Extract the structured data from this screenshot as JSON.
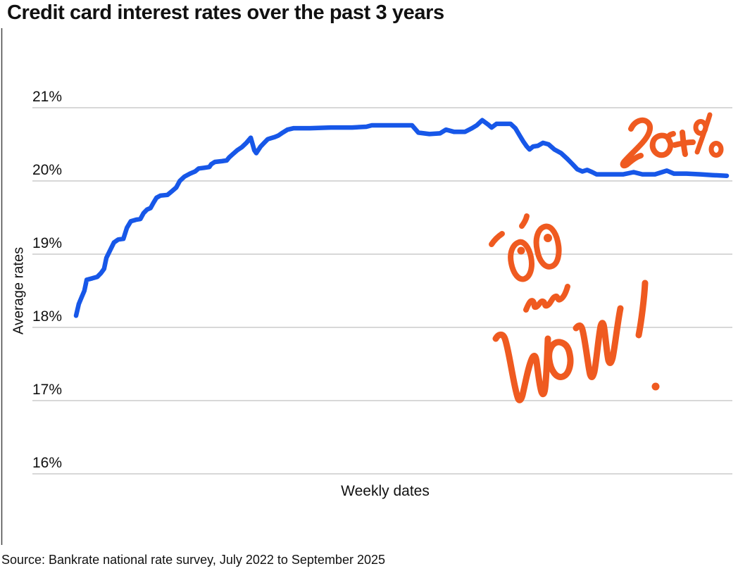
{
  "title": "Credit card interest rates over the past 3 years",
  "source": "Source: Bankrate national rate survey, July 2022 to September 2025",
  "y_axis": {
    "label": "Average rates",
    "ticks": [
      {
        "label": "21%",
        "value": 21
      },
      {
        "label": "20%",
        "value": 20
      },
      {
        "label": "19%",
        "value": 19
      },
      {
        "label": "18%",
        "value": 18
      },
      {
        "label": "17%",
        "value": 17
      },
      {
        "label": "16%",
        "value": 16
      }
    ]
  },
  "x_axis": {
    "label": "Weekly dates"
  },
  "annotations": {
    "rate_note": "20+%",
    "exclamation": "WOW!",
    "face": "surprised-face-doodle"
  },
  "colors": {
    "line": "#1757e8",
    "annotation": "#ef5a20",
    "gridline": "#d8d8d8",
    "axis": "#444444",
    "text": "#111111"
  },
  "chart_data": {
    "type": "line",
    "title": "Credit card interest rates over the past 3 years",
    "xlabel": "Weekly dates",
    "ylabel": "Average rates",
    "x_unit": "weeks since July 2022 (through September 2025)",
    "x_range": [
      0,
      165
    ],
    "ylim": [
      15.5,
      21.5
    ],
    "y_ticks": [
      16,
      17,
      18,
      19,
      20,
      21
    ],
    "grid": "horizontal",
    "legend": "none",
    "series": [
      {
        "name": "Average credit card interest rate (%)",
        "points": [
          [
            0,
            18.16
          ],
          [
            0.7,
            18.32
          ],
          [
            1.4,
            18.41
          ],
          [
            2.1,
            18.5
          ],
          [
            2.7,
            18.65
          ],
          [
            4.1,
            18.67
          ],
          [
            5.4,
            18.69
          ],
          [
            6.3,
            18.74
          ],
          [
            7.1,
            18.8
          ],
          [
            7.7,
            18.95
          ],
          [
            8.6,
            19.05
          ],
          [
            9.6,
            19.16
          ],
          [
            10.7,
            19.2
          ],
          [
            12,
            19.21
          ],
          [
            12.9,
            19.36
          ],
          [
            13.9,
            19.45
          ],
          [
            15.2,
            19.47
          ],
          [
            16.3,
            19.48
          ],
          [
            17.1,
            19.56
          ],
          [
            18,
            19.61
          ],
          [
            18.9,
            19.63
          ],
          [
            19.6,
            19.7
          ],
          [
            20.4,
            19.77
          ],
          [
            21.4,
            19.8
          ],
          [
            23.2,
            19.81
          ],
          [
            24.3,
            19.86
          ],
          [
            25.4,
            19.91
          ],
          [
            26.3,
            20.0
          ],
          [
            27.5,
            20.06
          ],
          [
            28.9,
            20.1
          ],
          [
            30.2,
            20.13
          ],
          [
            31.1,
            20.17
          ],
          [
            32.5,
            20.18
          ],
          [
            33.8,
            20.19
          ],
          [
            34.3,
            20.23
          ],
          [
            35.2,
            20.26
          ],
          [
            37,
            20.27
          ],
          [
            38.2,
            20.28
          ],
          [
            38.8,
            20.32
          ],
          [
            39.6,
            20.36
          ],
          [
            40.9,
            20.42
          ],
          [
            42,
            20.46
          ],
          [
            43.2,
            20.52
          ],
          [
            44.3,
            20.59
          ],
          [
            45.2,
            20.42
          ],
          [
            45.7,
            20.38
          ],
          [
            46.8,
            20.47
          ],
          [
            47.7,
            20.52
          ],
          [
            48.6,
            20.57
          ],
          [
            50.4,
            20.6
          ],
          [
            51.3,
            20.62
          ],
          [
            52.1,
            20.65
          ],
          [
            53.6,
            20.7
          ],
          [
            55.2,
            20.72
          ],
          [
            59.3,
            20.72
          ],
          [
            64.6,
            20.73
          ],
          [
            70,
            20.73
          ],
          [
            73.6,
            20.74
          ],
          [
            75,
            20.76
          ],
          [
            79.8,
            20.76
          ],
          [
            85.2,
            20.76
          ],
          [
            86.8,
            20.66
          ],
          [
            89.6,
            20.64
          ],
          [
            92.3,
            20.65
          ],
          [
            93.8,
            20.7
          ],
          [
            95.9,
            20.67
          ],
          [
            98.6,
            20.67
          ],
          [
            100.4,
            20.72
          ],
          [
            101.6,
            20.76
          ],
          [
            103,
            20.83
          ],
          [
            104.5,
            20.77
          ],
          [
            105.4,
            20.73
          ],
          [
            106.6,
            20.78
          ],
          [
            108.4,
            20.78
          ],
          [
            110.2,
            20.78
          ],
          [
            111.4,
            20.72
          ],
          [
            112.5,
            20.62
          ],
          [
            113.4,
            20.54
          ],
          [
            114.3,
            20.47
          ],
          [
            115,
            20.43
          ],
          [
            115.9,
            20.47
          ],
          [
            117.1,
            20.48
          ],
          [
            118.4,
            20.52
          ],
          [
            119.8,
            20.5
          ],
          [
            121.3,
            20.43
          ],
          [
            123,
            20.38
          ],
          [
            124.6,
            20.3
          ],
          [
            125.9,
            20.23
          ],
          [
            127.1,
            20.16
          ],
          [
            128.4,
            20.13
          ],
          [
            129.6,
            20.15
          ],
          [
            130.9,
            20.12
          ],
          [
            132,
            20.09
          ],
          [
            135.2,
            20.09
          ],
          [
            138.8,
            20.09
          ],
          [
            141.4,
            20.12
          ],
          [
            143.6,
            20.09
          ],
          [
            146.8,
            20.09
          ],
          [
            149.8,
            20.14
          ],
          [
            151.6,
            20.1
          ],
          [
            154.8,
            20.1
          ],
          [
            158.4,
            20.09
          ],
          [
            161.4,
            20.08
          ],
          [
            165,
            20.07
          ]
        ]
      }
    ]
  }
}
